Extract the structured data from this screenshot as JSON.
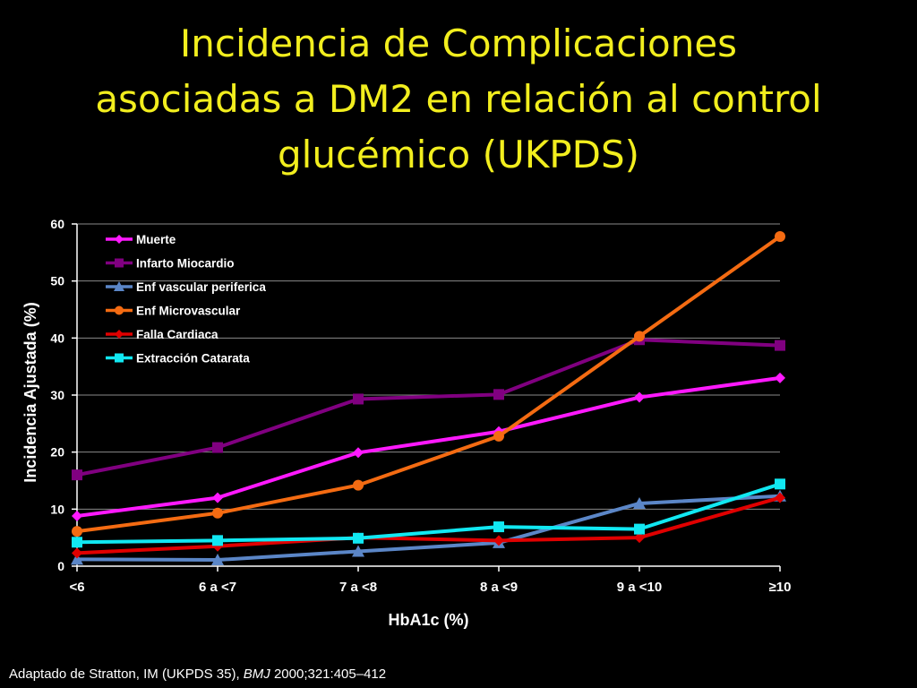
{
  "slide": {
    "title_lines": [
      "Incidencia de Complicaciones",
      "asociadas a DM2 en relación al control",
      "glucémico (UKPDS)"
    ],
    "footnote": {
      "prefix": "Adaptado de Stratton, IM (UKPDS 35), ",
      "journal": "BMJ",
      "suffix": " 2000;321:405–412"
    }
  },
  "chart_data": {
    "type": "line",
    "title": "",
    "xlabel": "HbA1c (%)",
    "ylabel": "Incidencia Ajustada (%)",
    "categories": [
      "<6",
      "6 a <7",
      "7 a <8",
      "8 a <9",
      "9 a <10",
      "≥10"
    ],
    "ylim": [
      0,
      60
    ],
    "yticks": [
      0,
      10,
      20,
      30,
      40,
      50,
      60
    ],
    "grid": true,
    "legend_position": "top-left",
    "series": [
      {
        "name": "Muerte",
        "color": "#ff19ff",
        "marker": "diamond",
        "values": [
          8.8,
          12.0,
          19.9,
          23.6,
          29.6,
          33.0
        ]
      },
      {
        "name": "Infarto Miocardio",
        "color": "#800080",
        "marker": "square",
        "values": [
          16.0,
          20.8,
          29.3,
          30.1,
          39.7,
          38.7
        ]
      },
      {
        "name": "Enf vascular periferica",
        "color": "#5b86c7",
        "marker": "triangle",
        "values": [
          1.2,
          1.1,
          2.6,
          4.1,
          11.0,
          12.3
        ]
      },
      {
        "name": "Enf Microvascular",
        "color": "#f46b12",
        "marker": "circle",
        "values": [
          6.1,
          9.3,
          14.2,
          22.8,
          40.3,
          57.8
        ]
      },
      {
        "name": "Falla Cardiaca",
        "color": "#e00000",
        "marker": "diamond",
        "values": [
          2.3,
          3.5,
          5.0,
          4.5,
          5.0,
          12.0
        ]
      },
      {
        "name": "Extracción Catarata",
        "color": "#11e8f2",
        "marker": "square",
        "values": [
          4.2,
          4.5,
          4.9,
          6.9,
          6.5,
          14.4
        ]
      }
    ]
  }
}
